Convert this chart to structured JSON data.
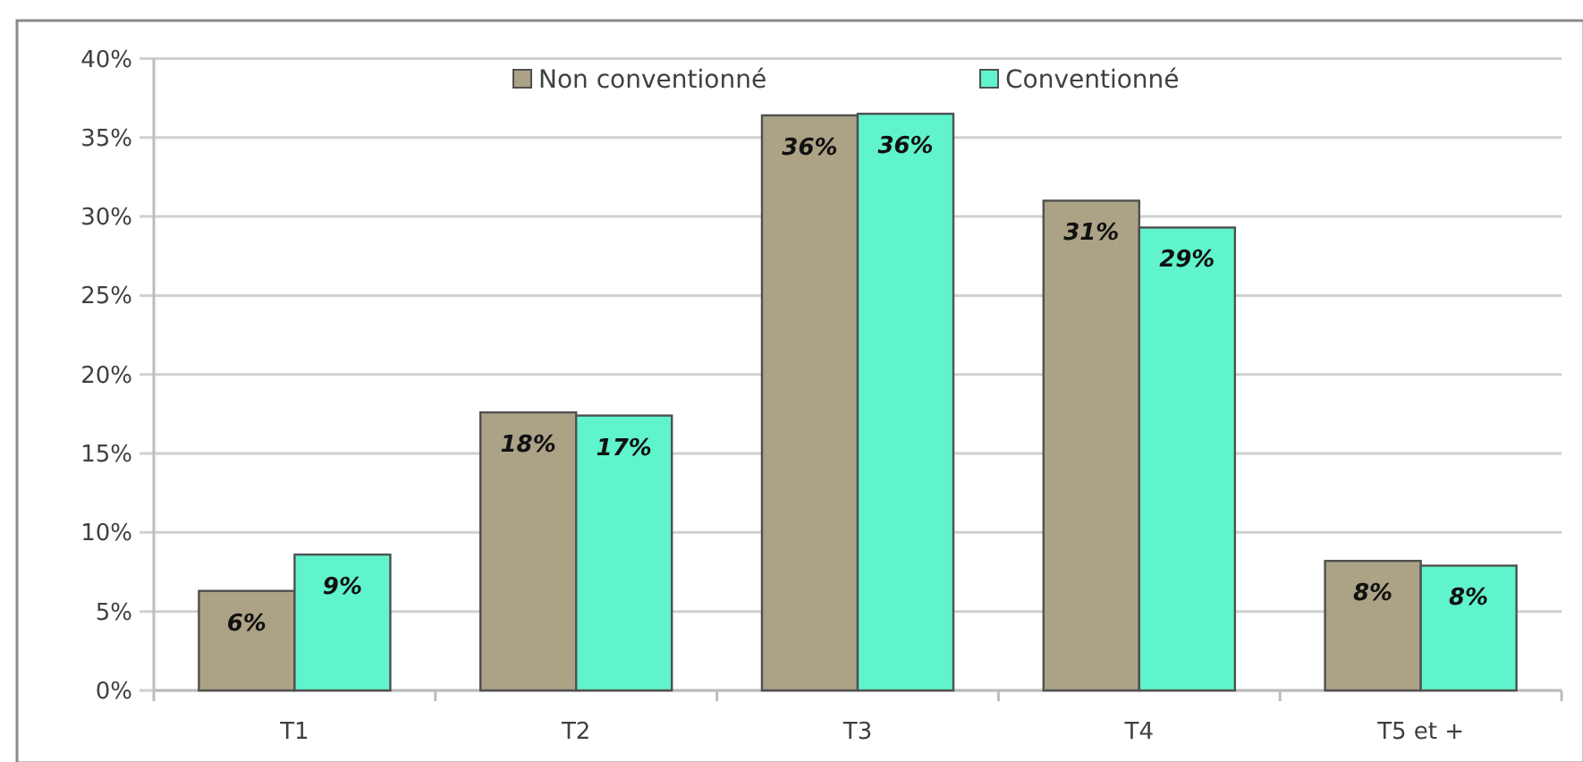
{
  "chart_data": {
    "type": "bar",
    "categories": [
      "T1",
      "T2",
      "T3",
      "T4",
      "T5 et +"
    ],
    "series": [
      {
        "name": "Non conventionné",
        "color": "#aca286",
        "values": [
          6.3,
          17.6,
          36.4,
          31.0,
          8.2
        ],
        "value_labels": [
          "6%",
          "18%",
          "36%",
          "31%",
          "8%"
        ]
      },
      {
        "name": "Conventionné",
        "color": "#60f4cc",
        "values": [
          8.6,
          17.4,
          36.5,
          29.3,
          7.9
        ],
        "value_labels": [
          "9%",
          "17%",
          "36%",
          "29%",
          "8%"
        ]
      }
    ],
    "ylim": [
      0,
      40
    ],
    "yticks": [
      {
        "value": 0,
        "label": "0%"
      },
      {
        "value": 5,
        "label": "5%"
      },
      {
        "value": 10,
        "label": "10%"
      },
      {
        "value": 15,
        "label": "15%"
      },
      {
        "value": 20,
        "label": "20%"
      },
      {
        "value": 25,
        "label": "25%"
      },
      {
        "value": 30,
        "label": "30%"
      },
      {
        "value": 35,
        "label": "35%"
      },
      {
        "value": 40,
        "label": "40%"
      }
    ],
    "grid": "y",
    "legend": "top"
  }
}
